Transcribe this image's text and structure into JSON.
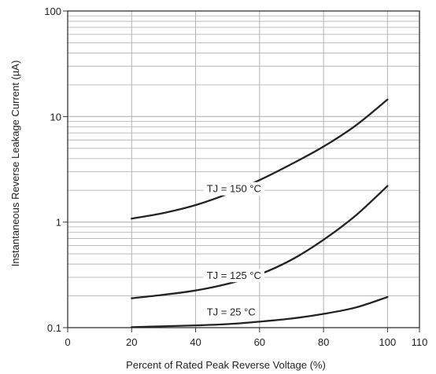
{
  "chart_data": {
    "type": "line",
    "title": "",
    "xlabel": "Percent of Rated Peak Reverse Voltage (%)",
    "ylabel": "Instantaneous Reverse Leakage Current (µA)",
    "xlim": [
      0,
      110
    ],
    "ylim": [
      0.1,
      100
    ],
    "yscale": "log",
    "grid": true,
    "x_ticks": [
      0,
      20,
      40,
      60,
      80,
      100,
      110
    ],
    "x_tick_labels": [
      "0",
      "20",
      "40",
      "60",
      "80",
      "100",
      "110"
    ],
    "y_ticks": [
      0.1,
      1,
      10,
      100
    ],
    "y_tick_labels": [
      "0.1",
      "1",
      "10",
      "100"
    ],
    "series": [
      {
        "name": "TJ = 150 °C",
        "x": [
          20,
          30,
          40,
          50,
          60,
          70,
          80,
          90,
          100
        ],
        "y": [
          1.08,
          1.22,
          1.45,
          1.85,
          2.5,
          3.55,
          5.2,
          8.2,
          14.5
        ]
      },
      {
        "name": "TJ = 125 °C",
        "x": [
          20,
          30,
          40,
          50,
          60,
          70,
          80,
          90,
          100
        ],
        "y": [
          0.19,
          0.205,
          0.225,
          0.26,
          0.32,
          0.44,
          0.68,
          1.15,
          2.2
        ]
      },
      {
        "name": "TJ = 25 °C",
        "x": [
          20,
          30,
          40,
          50,
          60,
          70,
          80,
          90,
          100
        ],
        "y": [
          0.101,
          0.103,
          0.105,
          0.108,
          0.114,
          0.122,
          0.135,
          0.155,
          0.195
        ]
      }
    ],
    "colors": {
      "curve": "#222222",
      "grid": "#b3b3b3",
      "axis": "#333333"
    }
  }
}
